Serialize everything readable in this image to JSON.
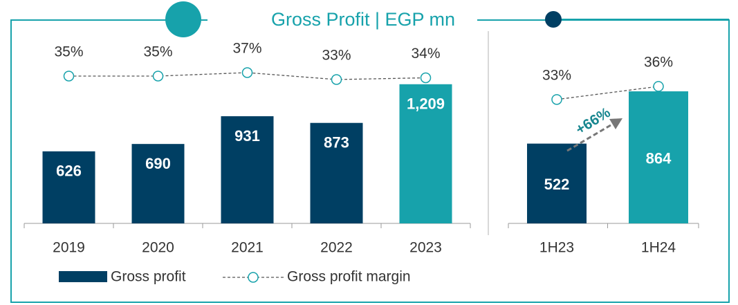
{
  "chart_data": [
    {
      "type": "bar",
      "title": "Gross Profit | EGP mn",
      "categories": [
        "2019",
        "2020",
        "2021",
        "2022",
        "2023"
      ],
      "series": [
        {
          "name": "Gross profit",
          "color": "#003f63",
          "colors": [
            "#003f63",
            "#003f63",
            "#003f63",
            "#003f63",
            "#17a2ab"
          ],
          "values": [
            626,
            690,
            931,
            873,
            1209
          ],
          "value_labels": [
            "626",
            "690",
            "931",
            "873",
            "1,209"
          ]
        },
        {
          "name": "Gross profit margin",
          "color": "#555555",
          "axis": "y2",
          "values": [
            35,
            35,
            37,
            33,
            34
          ],
          "value_labels": [
            "35%",
            "35%",
            "37%",
            "33%",
            "34%"
          ]
        }
      ],
      "ylim": [
        0,
        1400
      ],
      "y2lim": [
        0,
        40
      ]
    },
    {
      "type": "bar",
      "categories": [
        "1H23",
        "1H24"
      ],
      "series": [
        {
          "color": "#003f63",
          "colors": [
            "#003f63",
            "#17a2ab"
          ],
          "values": [
            522,
            864
          ]
        },
        {
          "color": "#555555",
          "axis": "y2",
          "values": [
            33,
            36
          ],
          "value_labels": [
            "33%",
            "36%"
          ]
        }
      ],
      "annotation": "+66%",
      "ylim": [
        0,
        1000
      ],
      "y2lim": [
        0,
        40
      ]
    }
  ]
}
